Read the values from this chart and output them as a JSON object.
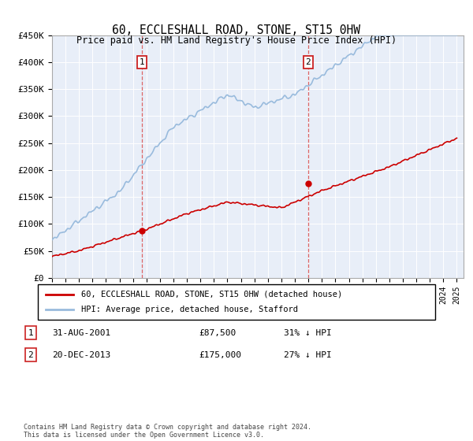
{
  "title": "60, ECCLESHALL ROAD, STONE, ST15 0HW",
  "subtitle": "Price paid vs. HM Land Registry's House Price Index (HPI)",
  "ylim": [
    0,
    450000
  ],
  "yticks": [
    0,
    50000,
    100000,
    150000,
    200000,
    250000,
    300000,
    350000,
    400000,
    450000
  ],
  "ytick_labels": [
    "£0",
    "£50K",
    "£100K",
    "£150K",
    "£200K",
    "£250K",
    "£300K",
    "£350K",
    "£400K",
    "£450K"
  ],
  "xlim_start": 1995.0,
  "xlim_end": 2025.5,
  "transaction1_date": 2001.667,
  "transaction1_price": 87500,
  "transaction2_date": 2013.972,
  "transaction2_price": 175000,
  "line_color_hpi": "#99bbdd",
  "line_color_price": "#cc0000",
  "vline_color": "#dd6666",
  "plot_bg": "#e8eef8",
  "legend_label_price": "60, ECCLESHALL ROAD, STONE, ST15 0HW (detached house)",
  "legend_label_hpi": "HPI: Average price, detached house, Stafford",
  "footer": "Contains HM Land Registry data © Crown copyright and database right 2024.\nThis data is licensed under the Open Government Licence v3.0.",
  "table_row1": [
    "1",
    "31-AUG-2001",
    "£87,500",
    "31% ↓ HPI"
  ],
  "table_row2": [
    "2",
    "20-DEC-2013",
    "£175,000",
    "27% ↓ HPI"
  ]
}
